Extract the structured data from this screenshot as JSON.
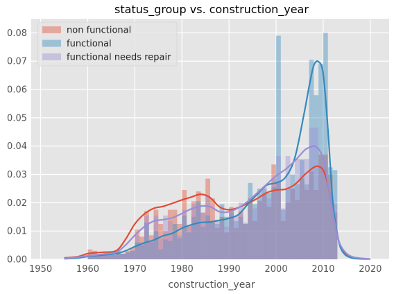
{
  "chart_data": {
    "type": "bar",
    "title": "status_group vs. construction_year",
    "xlabel": "construction_year",
    "ylabel": "",
    "xlim": [
      1948,
      2024
    ],
    "ylim": [
      0,
      0.085
    ],
    "xticks": [
      "1950",
      "1960",
      "1970",
      "1980",
      "1990",
      "2000",
      "2010",
      "2020"
    ],
    "yticks": [
      "0.00",
      "0.01",
      "0.02",
      "0.03",
      "0.04",
      "0.05",
      "0.06",
      "0.07",
      "0.08"
    ],
    "grid": true,
    "legend_position": "top-left",
    "bin_width": 1,
    "series": [
      {
        "name": "non functional",
        "color": "#E24A33",
        "bins": [
          [
            1960,
            0.0035
          ],
          [
            1961,
            0.003
          ],
          [
            1962,
            0.0015
          ],
          [
            1963,
            0.0015
          ],
          [
            1964,
            0.0015
          ],
          [
            1965,
            0.0015
          ],
          [
            1966,
            0.003
          ],
          [
            1967,
            0.002
          ],
          [
            1968,
            0.003
          ],
          [
            1969,
            0.004
          ],
          [
            1970,
            0.0105
          ],
          [
            1971,
            0.008
          ],
          [
            1972,
            0.017
          ],
          [
            1973,
            0.0085
          ],
          [
            1974,
            0.0175
          ],
          [
            1975,
            0.0125
          ],
          [
            1976,
            0.01
          ],
          [
            1977,
            0.0175
          ],
          [
            1978,
            0.0175
          ],
          [
            1979,
            0.0125
          ],
          [
            1980,
            0.0245
          ],
          [
            1981,
            0.012
          ],
          [
            1982,
            0.0205
          ],
          [
            1983,
            0.024
          ],
          [
            1984,
            0.0165
          ],
          [
            1985,
            0.0285
          ],
          [
            1986,
            0.0215
          ],
          [
            1987,
            0.011
          ],
          [
            1988,
            0.015
          ],
          [
            1989,
            0.0095
          ],
          [
            1990,
            0.0185
          ],
          [
            1991,
            0.011
          ],
          [
            1992,
            0.017
          ],
          [
            1993,
            0.0125
          ],
          [
            1994,
            0.0215
          ],
          [
            1995,
            0.0135
          ],
          [
            1996,
            0.0205
          ],
          [
            1997,
            0.023
          ],
          [
            1998,
            0.0185
          ],
          [
            1999,
            0.0335
          ],
          [
            2000,
            0.0275
          ],
          [
            2001,
            0.0135
          ],
          [
            2002,
            0.02
          ],
          [
            2003,
            0.025
          ],
          [
            2004,
            0.021
          ],
          [
            2005,
            0.0285
          ],
          [
            2006,
            0.0245
          ],
          [
            2007,
            0.031
          ],
          [
            2008,
            0.0245
          ],
          [
            2009,
            0.037
          ],
          [
            2010,
            0.037
          ],
          [
            2011,
            0.03
          ],
          [
            2012,
            0.0165
          ]
        ],
        "kde": [
          [
            1955,
            0.0005
          ],
          [
            1958,
            0.001
          ],
          [
            1960,
            0.002
          ],
          [
            1963,
            0.0025
          ],
          [
            1966,
            0.003
          ],
          [
            1968,
            0.007
          ],
          [
            1970,
            0.0125
          ],
          [
            1972,
            0.016
          ],
          [
            1974,
            0.018
          ],
          [
            1976,
            0.0187
          ],
          [
            1978,
            0.0198
          ],
          [
            1980,
            0.021
          ],
          [
            1982,
            0.022
          ],
          [
            1984,
            0.023
          ],
          [
            1986,
            0.0218
          ],
          [
            1988,
            0.0185
          ],
          [
            1990,
            0.0175
          ],
          [
            1992,
            0.0183
          ],
          [
            1994,
            0.0198
          ],
          [
            1996,
            0.0215
          ],
          [
            1998,
            0.0235
          ],
          [
            2000,
            0.0245
          ],
          [
            2002,
            0.0248
          ],
          [
            2004,
            0.0265
          ],
          [
            2006,
            0.0298
          ],
          [
            2008,
            0.0325
          ],
          [
            2009,
            0.0328
          ],
          [
            2010,
            0.0315
          ],
          [
            2011,
            0.0265
          ],
          [
            2012,
            0.017
          ],
          [
            2013,
            0.0085
          ],
          [
            2014,
            0.0035
          ],
          [
            2016,
            0.0008
          ],
          [
            2019,
            0.0001
          ]
        ]
      },
      {
        "name": "functional",
        "color": "#348ABD",
        "bins": [
          [
            1960,
            0.0015
          ],
          [
            1961,
            0.0015
          ],
          [
            1962,
            0.0015
          ],
          [
            1963,
            0.0015
          ],
          [
            1964,
            0.0015
          ],
          [
            1965,
            0.0015
          ],
          [
            1966,
            0.002
          ],
          [
            1967,
            0.002
          ],
          [
            1968,
            0.0025
          ],
          [
            1969,
            0.003
          ],
          [
            1970,
            0.006
          ],
          [
            1971,
            0.005
          ],
          [
            1972,
            0.013
          ],
          [
            1973,
            0.006
          ],
          [
            1974,
            0.01
          ],
          [
            1975,
            0.0035
          ],
          [
            1976,
            0.007
          ],
          [
            1977,
            0.0065
          ],
          [
            1978,
            0.0125
          ],
          [
            1979,
            0.0075
          ],
          [
            1980,
            0.0155
          ],
          [
            1981,
            0.0095
          ],
          [
            1982,
            0.015
          ],
          [
            1983,
            0.0205
          ],
          [
            1984,
            0.0115
          ],
          [
            1985,
            0.0155
          ],
          [
            1986,
            0.013
          ],
          [
            1987,
            0.0125
          ],
          [
            1988,
            0.0195
          ],
          [
            1989,
            0.015
          ],
          [
            1990,
            0.0165
          ],
          [
            1991,
            0.0135
          ],
          [
            1992,
            0.015
          ],
          [
            1993,
            0.0125
          ],
          [
            1994,
            0.027
          ],
          [
            1995,
            0.0195
          ],
          [
            1996,
            0.025
          ],
          [
            1997,
            0.025
          ],
          [
            1998,
            0.0235
          ],
          [
            1999,
            0.0255
          ],
          [
            2000,
            0.079
          ],
          [
            2001,
            0.0175
          ],
          [
            2002,
            0.025
          ],
          [
            2003,
            0.03
          ],
          [
            2004,
            0.0265
          ],
          [
            2005,
            0.035
          ],
          [
            2006,
            0.0265
          ],
          [
            2007,
            0.0705
          ],
          [
            2008,
            0.058
          ],
          [
            2009,
            0.069
          ],
          [
            2010,
            0.08
          ],
          [
            2011,
            0.0325
          ],
          [
            2012,
            0.0315
          ]
        ],
        "kde": [
          [
            1955,
            0.0002
          ],
          [
            1958,
            0.0005
          ],
          [
            1960,
            0.001
          ],
          [
            1963,
            0.0015
          ],
          [
            1966,
            0.002
          ],
          [
            1968,
            0.003
          ],
          [
            1970,
            0.0045
          ],
          [
            1972,
            0.0058
          ],
          [
            1974,
            0.0068
          ],
          [
            1976,
            0.0083
          ],
          [
            1978,
            0.0092
          ],
          [
            1980,
            0.011
          ],
          [
            1982,
            0.0122
          ],
          [
            1984,
            0.013
          ],
          [
            1986,
            0.0132
          ],
          [
            1988,
            0.0138
          ],
          [
            1990,
            0.0145
          ],
          [
            1992,
            0.0158
          ],
          [
            1994,
            0.0195
          ],
          [
            1996,
            0.023
          ],
          [
            1998,
            0.0262
          ],
          [
            2000,
            0.027
          ],
          [
            2002,
            0.029
          ],
          [
            2004,
            0.036
          ],
          [
            2006,
            0.052
          ],
          [
            2007,
            0.061
          ],
          [
            2008,
            0.0685
          ],
          [
            2009,
            0.0698
          ],
          [
            2010,
            0.0655
          ],
          [
            2011,
            0.046
          ],
          [
            2012,
            0.021
          ],
          [
            2013,
            0.009
          ],
          [
            2014,
            0.003
          ],
          [
            2016,
            0.0005
          ],
          [
            2020,
            0.0001
          ]
        ]
      },
      {
        "name": "functional needs repair",
        "color": "#988ED5",
        "bins": [
          [
            1960,
            0.0015
          ],
          [
            1961,
            0.0015
          ],
          [
            1962,
            0.0015
          ],
          [
            1963,
            0.0015
          ],
          [
            1964,
            0.0015
          ],
          [
            1965,
            0.0015
          ],
          [
            1966,
            0.0015
          ],
          [
            1967,
            0.002
          ],
          [
            1968,
            0.0025
          ],
          [
            1969,
            0.003
          ],
          [
            1970,
            0.0085
          ],
          [
            1971,
            0.006
          ],
          [
            1972,
            0.0155
          ],
          [
            1973,
            0.0065
          ],
          [
            1974,
            0.0155
          ],
          [
            1975,
            0.0075
          ],
          [
            1976,
            0.0155
          ],
          [
            1977,
            0.0135
          ],
          [
            1978,
            0.0085
          ],
          [
            1979,
            0.0085
          ],
          [
            1980,
            0.0175
          ],
          [
            1981,
            0.0115
          ],
          [
            1982,
            0.0195
          ],
          [
            1983,
            0.019
          ],
          [
            1984,
            0.0165
          ],
          [
            1985,
            0.0225
          ],
          [
            1986,
            0.013
          ],
          [
            1987,
            0.014
          ],
          [
            1988,
            0.0125
          ],
          [
            1989,
            0.0115
          ],
          [
            1990,
            0.018
          ],
          [
            1991,
            0.0155
          ],
          [
            1992,
            0.02
          ],
          [
            1993,
            0.013
          ],
          [
            1994,
            0.0175
          ],
          [
            1995,
            0.018
          ],
          [
            1996,
            0.021
          ],
          [
            1997,
            0.0255
          ],
          [
            1998,
            0.0215
          ],
          [
            1999,
            0.0285
          ],
          [
            2000,
            0.0365
          ],
          [
            2001,
            0.018
          ],
          [
            2002,
            0.0365
          ],
          [
            2003,
            0.025
          ],
          [
            2004,
            0.0355
          ],
          [
            2005,
            0.0355
          ],
          [
            2006,
            0.0355
          ],
          [
            2007,
            0.0465
          ],
          [
            2008,
            0.0465
          ],
          [
            2009,
            0.0345
          ],
          [
            2010,
            0.0345
          ],
          [
            2011,
            0.0235
          ],
          [
            2012,
            0.0195
          ]
        ],
        "kde": [
          [
            1955,
            0.0003
          ],
          [
            1958,
            0.0008
          ],
          [
            1960,
            0.0012
          ],
          [
            1963,
            0.0018
          ],
          [
            1966,
            0.0025
          ],
          [
            1968,
            0.005
          ],
          [
            1970,
            0.0085
          ],
          [
            1972,
            0.0115
          ],
          [
            1974,
            0.0135
          ],
          [
            1976,
            0.014
          ],
          [
            1978,
            0.0147
          ],
          [
            1980,
            0.0162
          ],
          [
            1982,
            0.0178
          ],
          [
            1984,
            0.0188
          ],
          [
            1986,
            0.0186
          ],
          [
            1988,
            0.0168
          ],
          [
            1990,
            0.0168
          ],
          [
            1992,
            0.0182
          ],
          [
            1994,
            0.0205
          ],
          [
            1996,
            0.0235
          ],
          [
            1998,
            0.0265
          ],
          [
            2000,
            0.0295
          ],
          [
            2002,
            0.0318
          ],
          [
            2004,
            0.0348
          ],
          [
            2006,
            0.0385
          ],
          [
            2007,
            0.0395
          ],
          [
            2008,
            0.04
          ],
          [
            2009,
            0.039
          ],
          [
            2010,
            0.0355
          ],
          [
            2011,
            0.027
          ],
          [
            2012,
            0.017
          ],
          [
            2013,
            0.0085
          ],
          [
            2014,
            0.004
          ],
          [
            2016,
            0.001
          ],
          [
            2020,
            0.0001
          ]
        ]
      }
    ]
  }
}
